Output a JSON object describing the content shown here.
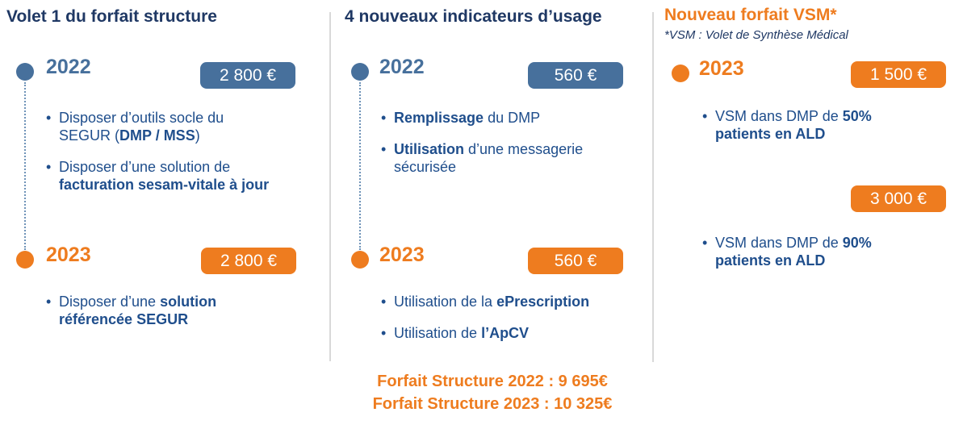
{
  "colors": {
    "navy": "#1F3864",
    "body_blue": "#1F4E8C",
    "steel_blue": "#47709C",
    "orange": "#EE7C1F",
    "divider_gray": "#D9D9D9",
    "badge_text": "#FFFFFF"
  },
  "columns": [
    {
      "title": "Volet 1 du forfait structure",
      "entries": [
        {
          "year": "2022",
          "amount": "2 800 €",
          "bullets": [
            [
              [
                {
                  "t": "Disposer d’outils socle du"
                }
              ],
              [
                {
                  "t": "SEGUR ("
                },
                {
                  "t": "DMP / MSS",
                  "b": true
                },
                {
                  "t": ")"
                }
              ]
            ],
            [
              [
                {
                  "t": "Disposer d’une solution de"
                }
              ],
              [
                {
                  "t": "facturation sesam-vitale à jour",
                  "b": true
                }
              ]
            ]
          ]
        },
        {
          "year": "2023",
          "amount": "2 800 €",
          "bullets": [
            [
              [
                {
                  "t": "Disposer d’une "
                },
                {
                  "t": "solution",
                  "b": true
                }
              ],
              [
                {
                  "t": "référencée SEGUR",
                  "b": true
                }
              ]
            ]
          ]
        }
      ]
    },
    {
      "title": "4 nouveaux indicateurs d’usage",
      "entries": [
        {
          "year": "2022",
          "amount": "560 €",
          "bullets": [
            [
              [
                {
                  "t": "Remplissage",
                  "b": true
                },
                {
                  "t": " du DMP"
                }
              ]
            ],
            [
              [
                {
                  "t": "Utilisation",
                  "b": true
                },
                {
                  "t": " d’une messagerie"
                }
              ],
              [
                {
                  "t": "sécurisée"
                }
              ]
            ]
          ]
        },
        {
          "year": "2023",
          "amount": "560 €",
          "bullets": [
            [
              [
                {
                  "t": "Utilisation de la "
                },
                {
                  "t": "ePrescription",
                  "b": true
                }
              ]
            ],
            [
              [
                {
                  "t": "Utilisation de "
                },
                {
                  "t": "l’ApCV",
                  "b": true
                }
              ]
            ]
          ]
        }
      ]
    },
    {
      "title": "Nouveau forfait VSM*",
      "subtitle": "*VSM : Volet de Synthèse Médical",
      "entries": [
        {
          "year": "2023",
          "amount": "1 500 €",
          "bullets": [
            [
              [
                {
                  "t": "VSM dans DMP de "
                },
                {
                  "t": "50%",
                  "b": true
                }
              ],
              [
                {
                  "t": "patients en ALD",
                  "b": true
                }
              ]
            ]
          ]
        },
        {
          "amount": "3 000 €",
          "bullets": [
            [
              [
                {
                  "t": "VSM dans DMP de "
                },
                {
                  "t": "90%",
                  "b": true
                }
              ],
              [
                {
                  "t": "patients en ALD",
                  "b": true
                }
              ]
            ]
          ]
        }
      ]
    }
  ],
  "totals": [
    "Forfait Structure 2022 : 9 695€",
    "Forfait Structure 2023 : 10 325€"
  ]
}
